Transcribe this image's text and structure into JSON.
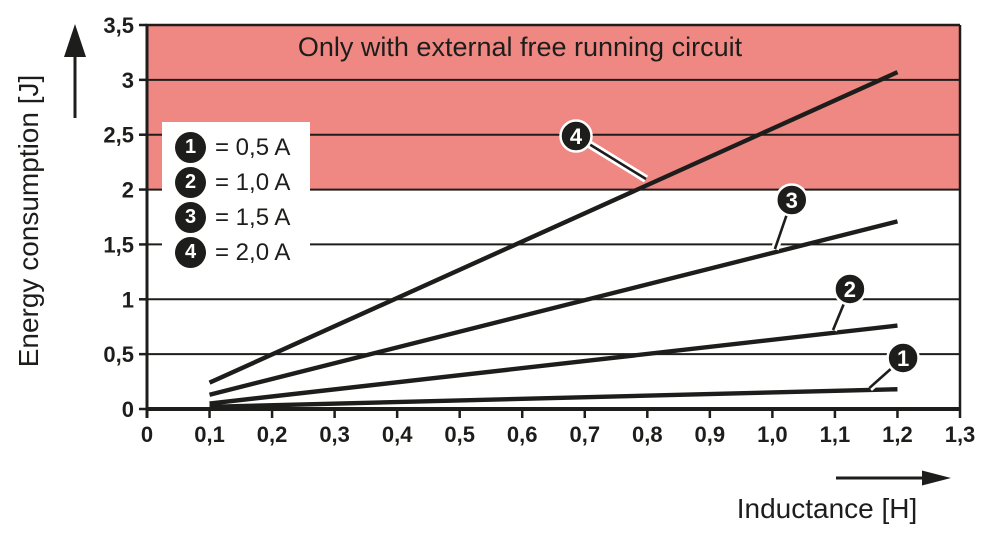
{
  "title": "Only with external free running circuit",
  "y_axis": {
    "label": "Energy consumption [J]",
    "ticks": [
      "0",
      "0,5",
      "1",
      "1,5",
      "2",
      "2,5",
      "3",
      "3,5"
    ]
  },
  "x_axis": {
    "label": "Inductance [H]",
    "ticks": [
      "0",
      "0,1",
      "0,2",
      "0,3",
      "0,4",
      "0,5",
      "0,6",
      "0,7",
      "0,8",
      "0,9",
      "1,0",
      "1,1",
      "1,2",
      "1,3"
    ]
  },
  "legend": {
    "items": [
      {
        "marker": "1",
        "label": "= 0,5 A"
      },
      {
        "marker": "2",
        "label": "= 1,0 A"
      },
      {
        "marker": "3",
        "label": "= 1,5 A"
      },
      {
        "marker": "4",
        "label": "= 2,0 A"
      }
    ]
  },
  "colors": {
    "shaded_region": "#ef8783",
    "ink": "#1d1d1b",
    "background": "#ffffff"
  },
  "chart_data": {
    "type": "line",
    "title": "Only with external free running circuit",
    "xlabel": "Inductance [H]",
    "ylabel": "Energy consumption [J]",
    "xlim": [
      0,
      1.3
    ],
    "ylim": [
      0,
      3.5
    ],
    "x_tick_step": 0.1,
    "y_tick_step": 0.5,
    "grid": "horizontal-only",
    "legend_position": "upper-left-inside",
    "shaded_region": {
      "y_from": 2.0,
      "y_to": 3.5,
      "color": "#ef8783",
      "meaning": "Only with external free running circuit"
    },
    "series": [
      {
        "marker": "1",
        "name": "0,5 A",
        "x": [
          0.1,
          1.2
        ],
        "values": [
          0.02,
          0.18
        ]
      },
      {
        "marker": "2",
        "name": "1,0 A",
        "x": [
          0.1,
          1.2
        ],
        "values": [
          0.05,
          0.76
        ]
      },
      {
        "marker": "3",
        "name": "1,5 A",
        "x": [
          0.1,
          1.2
        ],
        "values": [
          0.13,
          1.71
        ]
      },
      {
        "marker": "4",
        "name": "2,0 A",
        "x": [
          0.1,
          1.2
        ],
        "values": [
          0.24,
          3.07
        ]
      }
    ],
    "annotations": [
      {
        "marker": "1",
        "circle": {
          "x": 1.209,
          "y": 0.465
        },
        "anchor": {
          "x": 1.155,
          "y": 0.191
        }
      },
      {
        "marker": "2",
        "circle": {
          "x": 1.124,
          "y": 1.094
        },
        "anchor": {
          "x": 1.097,
          "y": 0.72
        }
      },
      {
        "marker": "3",
        "circle": {
          "x": 1.031,
          "y": 1.905
        },
        "anchor": {
          "x": 1.004,
          "y": 1.458
        }
      },
      {
        "marker": "4",
        "circle": {
          "x": 0.686,
          "y": 2.488
        },
        "anchor": {
          "x": 0.798,
          "y": 2.096
        }
      }
    ]
  }
}
